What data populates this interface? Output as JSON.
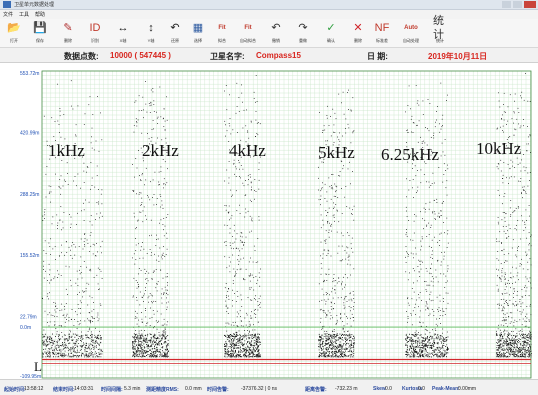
{
  "window": {
    "title": "卫星单元数据处理"
  },
  "menu": [
    "文件",
    "工具",
    "帮助"
  ],
  "toolbar": [
    {
      "icon": "folder-open-icon",
      "glyph": "📂",
      "label": "打开",
      "color": "#c99a2e"
    },
    {
      "icon": "save-icon",
      "glyph": "💾",
      "label": "保存",
      "color": "#2d3f6e"
    },
    {
      "icon": "erase-icon",
      "glyph": "✎",
      "label": "删除",
      "color": "#b03030"
    },
    {
      "icon": "id-icon",
      "glyph": "ID",
      "label": "识别",
      "color": "#c0392b"
    },
    {
      "icon": "x-scale-icon",
      "glyph": "↔",
      "label": "X轴",
      "color": "#222"
    },
    {
      "icon": "y-scale-icon",
      "glyph": "↕",
      "label": "Y轴",
      "color": "#222"
    },
    {
      "icon": "undo-zoom-icon",
      "glyph": "↶",
      "label": "还原",
      "color": "#222"
    },
    {
      "icon": "select-icon",
      "glyph": "▦",
      "label": "选择",
      "color": "#2d5aa0"
    },
    {
      "icon": "manual-fit-icon",
      "glyph": "Fit",
      "label": "拟合",
      "color": "#c0392b"
    },
    {
      "icon": "auto-fit-icon",
      "glyph": "Fit",
      "label": "自动拟合",
      "color": "#c0392b"
    },
    {
      "icon": "undo-icon",
      "glyph": "↶",
      "label": "撤销",
      "color": "#333"
    },
    {
      "icon": "redo-icon",
      "glyph": "↷",
      "label": "重做",
      "color": "#333"
    },
    {
      "icon": "check-icon",
      "glyph": "✓",
      "label": "确认",
      "color": "#2e9e3e"
    },
    {
      "icon": "delete-icon",
      "glyph": "✕",
      "label": "删除",
      "color": "#d0262b"
    },
    {
      "icon": "nf-icon",
      "glyph": "NF",
      "label": "标准差",
      "color": "#c0392b"
    },
    {
      "icon": "auto-process-icon",
      "glyph": "Auto",
      "label": "自动处理",
      "color": "#c0392b"
    },
    {
      "icon": "statistics-icon",
      "glyph": "统计",
      "label": "统计",
      "color": "#333"
    }
  ],
  "info": {
    "points_label": "数据点数:",
    "points_value": "10000 ( 547445 )",
    "satellite_label": "卫星名字:",
    "satellite_value": "Compass15",
    "date_label": "日   期:",
    "date_value": "2019年10月11日"
  },
  "chart_data": {
    "type": "scatter",
    "title": "",
    "xlabel": "",
    "ylabel": "",
    "yticks": [
      "553.72m",
      "420.99m",
      "288.25m",
      "155.52m",
      "22.79m",
      "0.0m",
      "-109.95m"
    ],
    "ylim": [
      -109.95,
      553.72
    ],
    "grid": true,
    "bands": [
      {
        "name": "1kHz",
        "level": 1.0
      },
      {
        "name": "2kHz",
        "level": 0.95
      },
      {
        "name": "4kHz",
        "level": 1.0
      },
      {
        "name": "5kHz",
        "level": 0.95
      },
      {
        "name": "6.25kHz",
        "level": 1.0
      },
      {
        "name": "10kHz",
        "level": 1.1
      }
    ],
    "baseline_letter": "L",
    "colors": {
      "points": "#111111",
      "grid": "#c9e6c9",
      "threshold": "#d0262b",
      "baseline": "#55b855"
    }
  },
  "status": [
    {
      "label": "起始时间:",
      "value": "13:58:12"
    },
    {
      "label": "结束时间:",
      "value": "14:03:31"
    },
    {
      "label": "时间间隔:",
      "value": "5.3 min"
    },
    {
      "label": "测距精度RMS:",
      "value": "0.0 mm"
    },
    {
      "label": "时间告警:",
      "value": "-37376.32 | 0 ns"
    },
    {
      "label": "距离告警:",
      "value": "-732.23 m"
    },
    {
      "label": "Skew",
      "value": "0.0"
    },
    {
      "label": "Kurtosis",
      "value": "0.0"
    },
    {
      "label": "Peak-Mean:",
      "value": "0.00mm"
    }
  ]
}
